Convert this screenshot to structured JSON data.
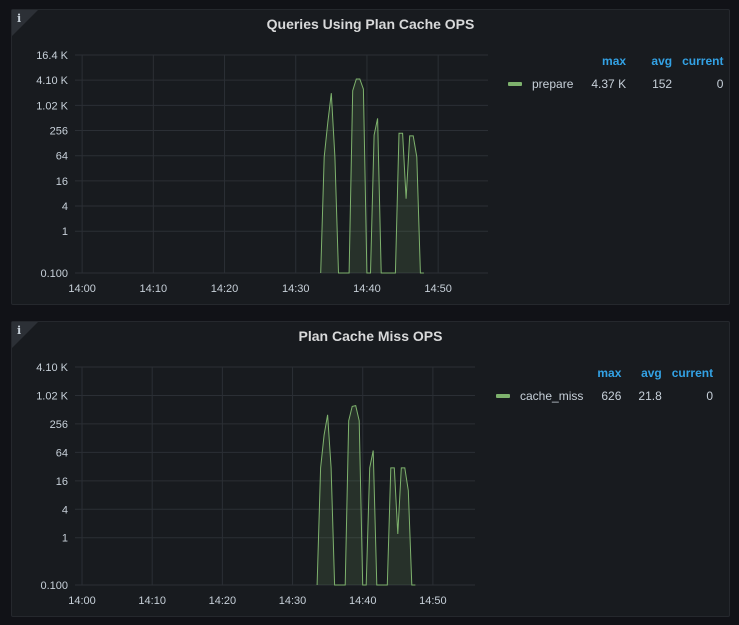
{
  "colors": {
    "series": "#7eb26d",
    "legend_header": "#33a2e5"
  },
  "panels": [
    {
      "title": "Queries Using Plan Cache OPS",
      "legend": {
        "headers": {
          "max": "max",
          "avg": "avg",
          "current": "current"
        },
        "series_name": "prepare",
        "max": "4.37 K",
        "avg": "152",
        "current": "0"
      }
    },
    {
      "title": "Plan Cache Miss OPS",
      "legend": {
        "headers": {
          "max": "max",
          "avg": "avg",
          "current": "current"
        },
        "series_name": "cache_miss",
        "max": "626",
        "avg": "21.8",
        "current": "0"
      }
    }
  ],
  "chart_data": [
    {
      "type": "area",
      "title": "Queries Using Plan Cache OPS",
      "y_scale": "log",
      "grid": true,
      "legend_placement": "right",
      "xlim": [
        "13:59",
        "14:57"
      ],
      "x_ticks": [
        "14:00",
        "14:10",
        "14:20",
        "14:30",
        "14:40",
        "14:50"
      ],
      "y_ticks": [
        {
          "value": 0.1,
          "label": "0.100"
        },
        {
          "value": 1,
          "label": "1"
        },
        {
          "value": 4,
          "label": "4"
        },
        {
          "value": 16,
          "label": "16"
        },
        {
          "value": 64,
          "label": "64"
        },
        {
          "value": 256,
          "label": "256"
        },
        {
          "value": 1024,
          "label": "1.02 K"
        },
        {
          "value": 4100,
          "label": "4.10 K"
        },
        {
          "value": 16400,
          "label": "16.4 K"
        }
      ],
      "series": [
        {
          "name": "prepare",
          "x": [
            "14:33:30",
            "14:34:00",
            "14:34:30",
            "14:35:00",
            "14:35:30",
            "14:36:00",
            "14:37:30",
            "14:38:00",
            "14:38:30",
            "14:39:00",
            "14:39:30",
            "14:40:00",
            "14:40:30",
            "14:41:00",
            "14:41:30",
            "14:42:00",
            "14:44:00",
            "14:44:30",
            "14:45:00",
            "14:45:30",
            "14:46:00",
            "14:46:30",
            "14:47:00",
            "14:47:30",
            "14:48:00"
          ],
          "y": [
            0.1,
            60,
            400,
            2000,
            60,
            0.1,
            0.1,
            2300,
            4370,
            4370,
            2500,
            0.1,
            0.1,
            200,
            500,
            0.1,
            0.1,
            220,
            220,
            6,
            190,
            190,
            60,
            0.1,
            0.1
          ]
        }
      ]
    },
    {
      "type": "area",
      "title": "Plan Cache Miss OPS",
      "y_scale": "log",
      "grid": true,
      "legend_placement": "right",
      "xlim": [
        "13:59",
        "14:56"
      ],
      "x_ticks": [
        "14:00",
        "14:10",
        "14:20",
        "14:30",
        "14:40",
        "14:50"
      ],
      "y_ticks": [
        {
          "value": 0.1,
          "label": "0.100"
        },
        {
          "value": 1,
          "label": "1"
        },
        {
          "value": 4,
          "label": "4"
        },
        {
          "value": 16,
          "label": "16"
        },
        {
          "value": 64,
          "label": "64"
        },
        {
          "value": 256,
          "label": "256"
        },
        {
          "value": 1024,
          "label": "1.02 K"
        },
        {
          "value": 4100,
          "label": "4.10 K"
        }
      ],
      "series": [
        {
          "name": "cache_miss",
          "x": [
            "14:33:30",
            "14:34:00",
            "14:34:30",
            "14:35:00",
            "14:35:30",
            "14:36:00",
            "14:37:30",
            "14:38:00",
            "14:38:30",
            "14:39:00",
            "14:39:30",
            "14:40:00",
            "14:40:30",
            "14:41:00",
            "14:41:30",
            "14:42:00",
            "14:43:30",
            "14:44:00",
            "14:44:30",
            "14:45:00",
            "14:45:30",
            "14:46:00",
            "14:46:30",
            "14:47:00",
            "14:47:30"
          ],
          "y": [
            0.1,
            30,
            150,
            400,
            30,
            0.1,
            0.1,
            300,
            600,
            626,
            300,
            0.1,
            0.1,
            30,
            70,
            0.1,
            0.1,
            30,
            30,
            1.2,
            30,
            30,
            10,
            0.1,
            0.1
          ]
        }
      ]
    }
  ]
}
